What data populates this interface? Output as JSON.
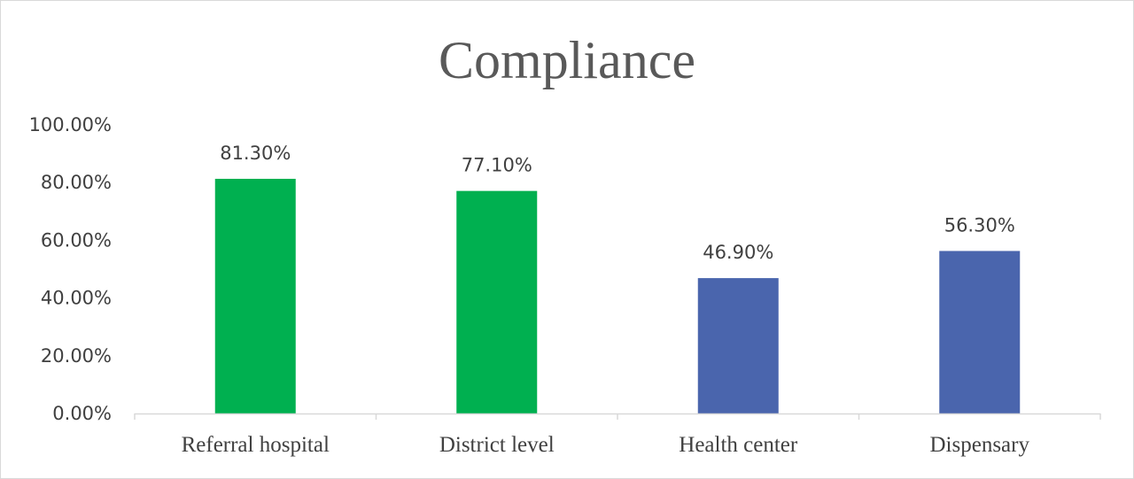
{
  "chart_data": {
    "type": "bar",
    "title": "Compliance",
    "categories": [
      "Referral hospital",
      "District level",
      "Health center",
      "Dispensary"
    ],
    "values": [
      81.3,
      77.1,
      46.9,
      56.3
    ],
    "data_labels": [
      "81.30%",
      "77.10%",
      "46.90%",
      "56.30%"
    ],
    "bar_colors": [
      "#00b050",
      "#00b050",
      "#4a65ad",
      "#4a65ad"
    ],
    "ylim": [
      0,
      100
    ],
    "yticks": [
      0,
      20,
      40,
      60,
      80,
      100
    ],
    "ytick_labels": [
      "0.00%",
      "20.00%",
      "40.00%",
      "60.00%",
      "80.00%",
      "100.00%"
    ],
    "grid": false,
    "legend": "none"
  }
}
